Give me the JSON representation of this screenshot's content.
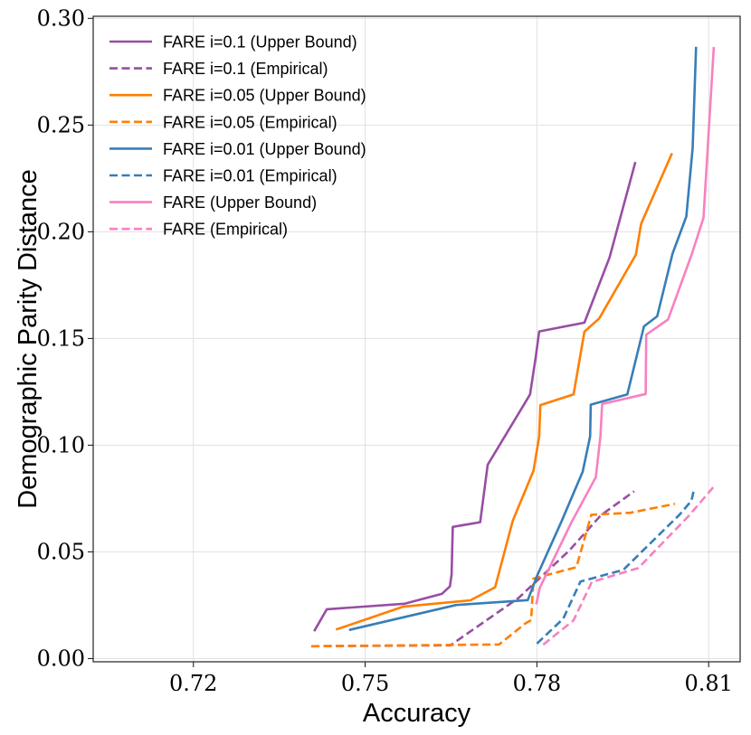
{
  "chart_data": {
    "type": "line",
    "title": "",
    "xlabel": "Accuracy",
    "ylabel": "Demographic Parity Distance",
    "xlim": [
      0.7025,
      0.8155
    ],
    "ylim": [
      -0.0015,
      0.301
    ],
    "xticks": [
      0.72,
      0.75,
      0.78,
      0.81
    ],
    "xtick_labels": [
      "0.72",
      "0.75",
      "0.78",
      "0.81"
    ],
    "yticks": [
      0.0,
      0.05,
      0.1,
      0.15,
      0.2,
      0.25,
      0.3
    ],
    "ytick_labels": [
      "0.00",
      "0.05",
      "0.10",
      "0.15",
      "0.20",
      "0.25",
      "0.30"
    ],
    "grid": true,
    "legend_position": "top-left",
    "series": [
      {
        "name": "FARE i=0.1 (Upper Bound)",
        "color": "#984ea3",
        "dash": "solid",
        "points": [
          [
            0.7411,
            0.0128
          ],
          [
            0.7433,
            0.0231
          ],
          [
            0.7569,
            0.0257
          ],
          [
            0.7634,
            0.0303
          ],
          [
            0.7648,
            0.0338
          ],
          [
            0.7651,
            0.0394
          ],
          [
            0.7653,
            0.0617
          ],
          [
            0.7701,
            0.0639
          ],
          [
            0.7714,
            0.0908
          ],
          [
            0.7788,
            0.1238
          ],
          [
            0.7798,
            0.1413
          ],
          [
            0.7804,
            0.1533
          ],
          [
            0.7883,
            0.1574
          ],
          [
            0.7927,
            0.188
          ],
          [
            0.7972,
            0.2327
          ]
        ]
      },
      {
        "name": "FARE i=0.1 (Empirical)",
        "color": "#984ea3",
        "dash": "dashed",
        "points": [
          [
            0.7406,
            0.0058
          ],
          [
            0.7649,
            0.0062
          ],
          [
            0.7768,
            0.0284
          ],
          [
            0.7856,
            0.0505
          ],
          [
            0.7912,
            0.0672
          ],
          [
            0.797,
            0.0784
          ]
        ]
      },
      {
        "name": "FARE i=0.05 (Upper Bound)",
        "color": "#ff7f00",
        "dash": "solid",
        "points": [
          [
            0.7449,
            0.0136
          ],
          [
            0.7566,
            0.0243
          ],
          [
            0.7684,
            0.0273
          ],
          [
            0.7727,
            0.0334
          ],
          [
            0.7758,
            0.0647
          ],
          [
            0.7794,
            0.088
          ],
          [
            0.7804,
            0.1041
          ],
          [
            0.7806,
            0.1188
          ],
          [
            0.7864,
            0.1238
          ],
          [
            0.7883,
            0.1532
          ],
          [
            0.7909,
            0.1594
          ],
          [
            0.7973,
            0.1893
          ],
          [
            0.7982,
            0.2037
          ],
          [
            0.8036,
            0.2368
          ]
        ]
      },
      {
        "name": "FARE i=0.05 (Empirical)",
        "color": "#ff7f00",
        "dash": "dashed",
        "points": [
          [
            0.7406,
            0.0058
          ],
          [
            0.7734,
            0.0066
          ],
          [
            0.778,
            0.0165
          ],
          [
            0.779,
            0.018
          ],
          [
            0.7794,
            0.0375
          ],
          [
            0.7869,
            0.0428
          ],
          [
            0.7895,
            0.0674
          ],
          [
            0.7963,
            0.0683
          ],
          [
            0.8041,
            0.0725
          ]
        ]
      },
      {
        "name": "FARE i=0.01 (Upper Bound)",
        "color": "#377eb8",
        "dash": "solid",
        "points": [
          [
            0.7472,
            0.0134
          ],
          [
            0.7659,
            0.0251
          ],
          [
            0.7784,
            0.0274
          ],
          [
            0.7801,
            0.0392
          ],
          [
            0.7843,
            0.0643
          ],
          [
            0.788,
            0.0876
          ],
          [
            0.7893,
            0.1041
          ],
          [
            0.7894,
            0.119
          ],
          [
            0.7958,
            0.1238
          ],
          [
            0.7987,
            0.1557
          ],
          [
            0.801,
            0.1604
          ],
          [
            0.8037,
            0.1898
          ],
          [
            0.8061,
            0.2071
          ],
          [
            0.8072,
            0.2392
          ],
          [
            0.8078,
            0.2867
          ]
        ]
      },
      {
        "name": "FARE i=0.01 (Empirical)",
        "color": "#377eb8",
        "dash": "dashed",
        "points": [
          [
            0.78,
            0.007
          ],
          [
            0.7846,
            0.0187
          ],
          [
            0.7876,
            0.0361
          ],
          [
            0.7951,
            0.0416
          ],
          [
            0.805,
            0.0677
          ],
          [
            0.807,
            0.074
          ],
          [
            0.8075,
            0.08
          ]
        ]
      },
      {
        "name": "FARE (Upper Bound)",
        "color": "#f781bf",
        "dash": "solid",
        "points": [
          [
            0.7799,
            0.0254
          ],
          [
            0.7805,
            0.0331
          ],
          [
            0.786,
            0.0636
          ],
          [
            0.7903,
            0.085
          ],
          [
            0.7911,
            0.1042
          ],
          [
            0.7914,
            0.1193
          ],
          [
            0.799,
            0.124
          ],
          [
            0.7991,
            0.1518
          ],
          [
            0.8029,
            0.1589
          ],
          [
            0.8071,
            0.1898
          ],
          [
            0.8091,
            0.2066
          ],
          [
            0.8109,
            0.2866
          ]
        ]
      },
      {
        "name": "FARE (Empirical)",
        "color": "#f781bf",
        "dash": "dashed",
        "points": [
          [
            0.7811,
            0.0065
          ],
          [
            0.7864,
            0.0179
          ],
          [
            0.7896,
            0.0359
          ],
          [
            0.7977,
            0.0424
          ],
          [
            0.8066,
            0.0671
          ],
          [
            0.8108,
            0.0803
          ]
        ]
      }
    ]
  }
}
